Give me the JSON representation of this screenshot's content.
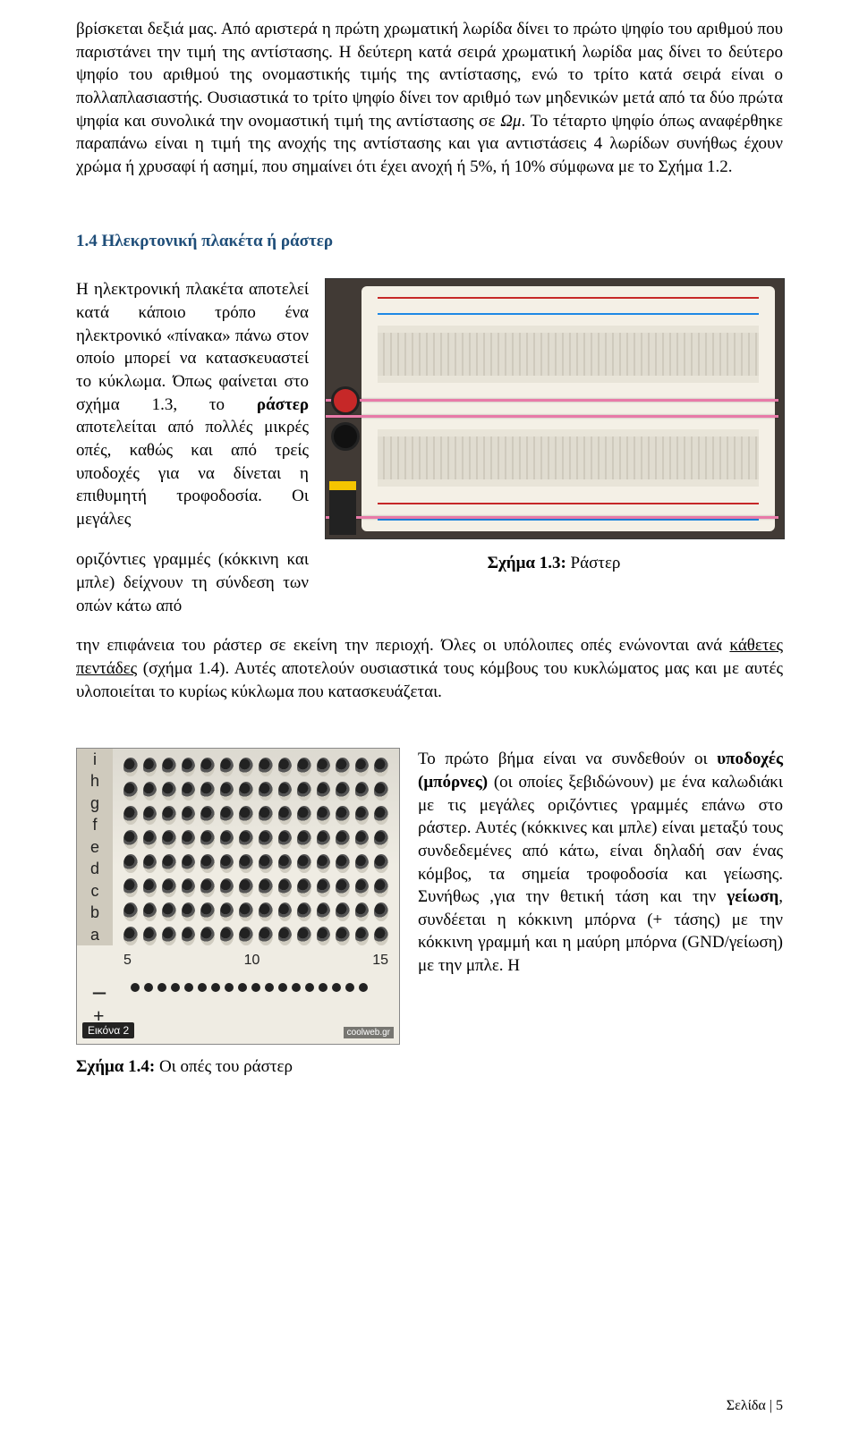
{
  "intro_para": "βρίσκεται δεξιά μας. Από αριστερά η πρώτη χρωματική λωρίδα δίνει το πρώτο ψηφίο του αριθμού που παριστάνει την τιμή της αντίστασης. Η δεύτερη κατά σειρά χρωματική λωρίδα μας δίνει το δεύτερο ψηφίο του αριθμού της ονομαστικής τιμής της αντίστασης, ενώ το τρίτο κατά σειρά είναι ο πολλαπλασιαστής. Ουσιαστικά το τρίτο ψηφίο δίνει τον αριθμό των μηδενικών μετά από τα δύο πρώτα ψηφία και συνολικά την ονομαστική τιμή της αντίστασης σε ",
  "intro_para_unit": "Ωμ",
  "intro_para_tail": ". Το τέταρτο ψηφίο όπως αναφέρθηκε παραπάνω είναι η τιμή της ανοχής της αντίστασης και για αντιστάσεις 4 λωρίδων συνήθως έχουν χρώμα ή χρυσαφί ή ασημί, που σημαίνει ότι έχει ανοχή ή 5%, ή 10% σύμφωνα με το Σχήμα 1.2.",
  "section_heading": "1.4 Ηλεκρτονική πλακέτα ή ράστερ",
  "left_col_para": "Η ηλεκτρονική πλακέτα αποτελεί κατά κάποιο τρόπο ένα ηλεκτρονικό «πίνακα» πάνω στον οποίο μπορεί να κατασκευαστεί το κύκλωμα. Όπως φαίνεται στο σχήμα 1.3, το ",
  "left_col_bold1": "ράστερ",
  "left_col_mid": " αποτελείται από πολλές μικρές οπές, καθώς και από τρείς υποδοχές για να δίνεται η επιθυμητή τροφοδοσία. Οι μεγάλες",
  "caption_left_text": "οριζόντιες γραμμές (κόκκινη και μπλε) δείχνουν τη σύνδεση των οπών κάτω από",
  "fig1_3_label": "Σχήμα 1.3:",
  "fig1_3_title": " Ράστερ",
  "after_img_1": "την επιφάνεια του ράστερ σε εκείνη την περιοχή. Όλες οι υπόλοιπες οπές ενώνονται ανά ",
  "after_img_underline": "κάθετες πεντάδες",
  "after_img_2": "  (σχήμα 1.4). Αυτές αποτελούν ουσιαστικά τους κόμβους του κυκλώματος μας και με αυτές υλοποιείται το κυρίως κύκλωμα που κατασκευάζεται.",
  "detail_letters": [
    "i",
    "h",
    "g",
    "f",
    "e",
    "d",
    "c",
    "b",
    "a"
  ],
  "detail_numbers": [
    "5",
    "10",
    "15"
  ],
  "detail_badge": "Εικόνα 2",
  "detail_wm": "coolweb.gr",
  "fig1_4_label": "Σχήμα 1.4:",
  "fig1_4_title": " Οι οπές του ράστερ",
  "right_text_1": "Το πρώτο βήμα είναι να συνδεθούν οι ",
  "right_text_b1": "υποδοχές (μπόρνες)",
  "right_text_2": " (οι οποίες ξεβιδώνουν) με ένα καλωδιάκι με τις μεγάλες οριζόντιες γραμμές επάνω στο ράστερ. Αυτές (κόκκινες και μπλε) είναι μεταξύ τους συνδεδεμένες από κάτω, είναι δηλαδή σαν ένας κόμβος, τα σημεία τροφοδοσία και γείωσης. Συνήθως ,για την θετική τάση και την ",
  "right_text_b2": "γείωση",
  "right_text_3": ", συνδέεται  η κόκκινη μπόρνα (+ τάσης) με την κόκκινη γραμμή και η μαύρη μπόρνα (GND/γείωση) με την μπλε. Η",
  "footer": "Σελίδα | 5"
}
